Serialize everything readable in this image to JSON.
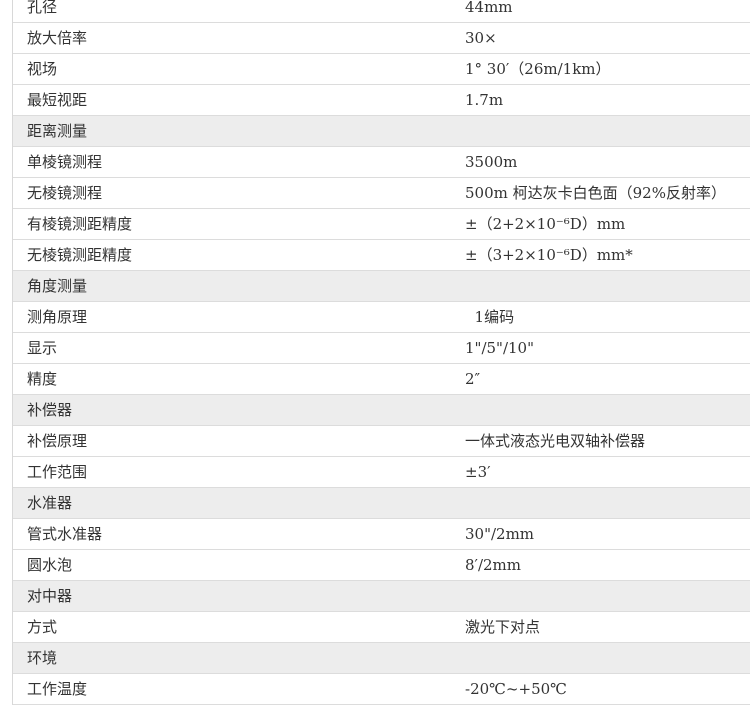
{
  "table": {
    "rows": [
      [
        "孔径",
        "44mm"
      ],
      [
        "放大倍率",
        "30×"
      ],
      [
        "视场",
        "1° 30′（26m/1km）"
      ],
      [
        "最短视距",
        "1.7m"
      ],
      [
        "距离测量"
      ],
      [
        "单棱镜测程",
        "3500m"
      ],
      [
        "无棱镜测程",
        "500m 柯达灰卡白色面（92%反射率）"
      ],
      [
        "有棱镜测距精度",
        "±（2+2×10⁻⁶D）mm"
      ],
      [
        "无棱镜测距精度",
        "±（3+2×10⁻⁶D）mm*"
      ],
      [
        "角度测量"
      ],
      [
        "测角原理",
        "  1编码"
      ],
      [
        "显示",
        "1\"/5\"/10\""
      ],
      [
        "精度",
        "2″"
      ],
      [
        "补偿器"
      ],
      [
        "补偿原理",
        "一体式液态光电双轴补偿器"
      ],
      [
        "工作范围",
        "±3′"
      ],
      [
        "水准器"
      ],
      [
        "管式水准器",
        "30\"/2mm"
      ],
      [
        "圆水泡",
        "8′/2mm"
      ],
      [
        "对中器"
      ],
      [
        "方式",
        "激光下对点"
      ],
      [
        "环境"
      ],
      [
        "工作温度",
        "-20℃~+50℃"
      ]
    ]
  }
}
